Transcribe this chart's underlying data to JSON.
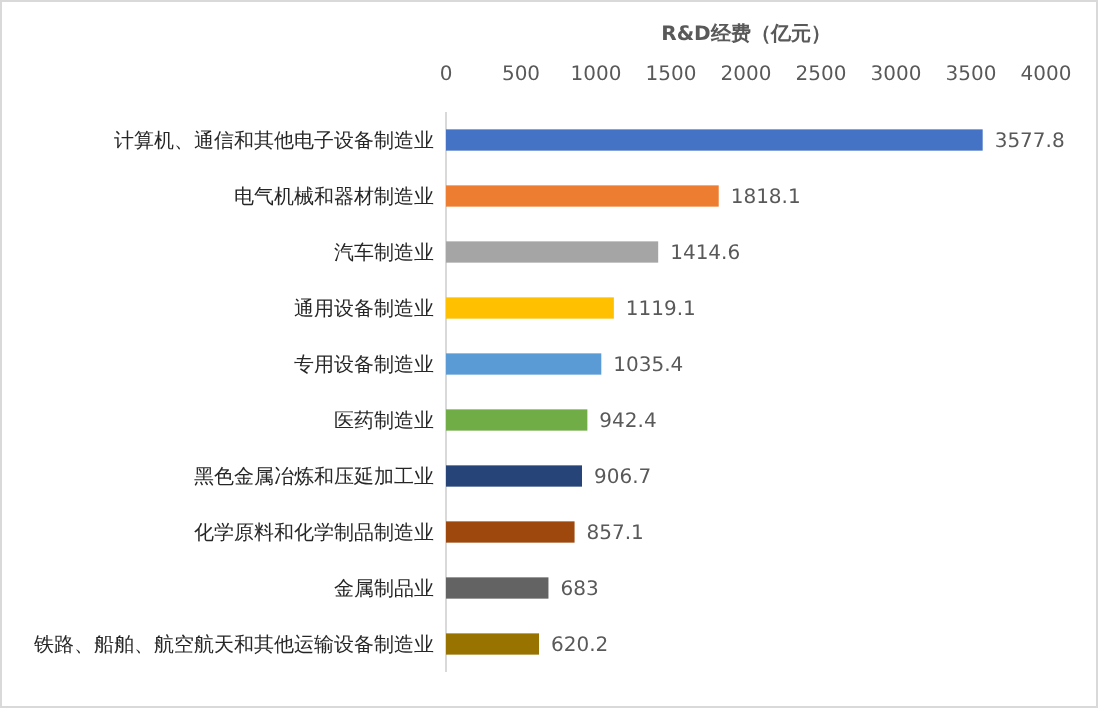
{
  "chart_data": {
    "type": "bar",
    "orientation": "horizontal",
    "xlabel": "R&D经费（亿元）",
    "categories": [
      "计算机、通信和其他电子设备制造业",
      "电气机械和器材制造业",
      "汽车制造业",
      "通用设备制造业",
      "专用设备制造业",
      "医药制造业",
      "黑色金属冶炼和压延加工业",
      "化学原料和化学制品制造业",
      "金属制品业",
      "铁路、船舶、航空航天和其他运输设备制造业"
    ],
    "values": [
      3577.8,
      1818.1,
      1414.6,
      1119.1,
      1035.4,
      942.4,
      906.7,
      857.1,
      683,
      620.2
    ],
    "colors": [
      "#4472c4",
      "#ed7d31",
      "#a5a5a5",
      "#ffc000",
      "#5b9bd5",
      "#70ad47",
      "#264478",
      "#9e480e",
      "#636363",
      "#997300"
    ],
    "xlim": [
      0,
      4000
    ],
    "xticks": [
      0,
      500,
      1000,
      1500,
      2000,
      2500,
      3000,
      3500,
      4000
    ],
    "data_labels": true,
    "grid": false
  }
}
